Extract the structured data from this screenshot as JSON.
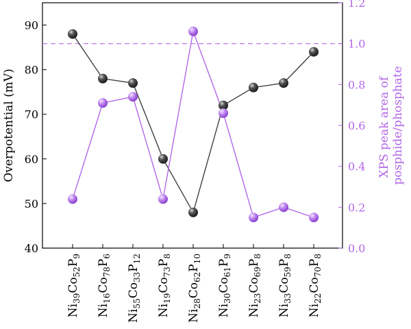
{
  "chart_data": {
    "type": "line",
    "categories": [
      "Ni39Co52P9",
      "Ni16Co78P6",
      "Ni55Co33P12",
      "Ni19Co73P8",
      "Ni28Co62P10",
      "Ni30Co61P9",
      "Ni23Co69P8",
      "Ni33Co59P8",
      "Ni22Co70P8"
    ],
    "category_parts": [
      [
        [
          "Ni",
          ""
        ],
        [
          "39",
          "s"
        ],
        [
          "Co",
          ""
        ],
        [
          "52",
          "s"
        ],
        [
          "P",
          ""
        ],
        [
          "9",
          "s"
        ]
      ],
      [
        [
          "Ni",
          ""
        ],
        [
          "16",
          "s"
        ],
        [
          "Co",
          ""
        ],
        [
          "78",
          "s"
        ],
        [
          "P",
          ""
        ],
        [
          "6",
          "s"
        ]
      ],
      [
        [
          "Ni",
          ""
        ],
        [
          "55",
          "s"
        ],
        [
          "Co",
          ""
        ],
        [
          "33",
          "s"
        ],
        [
          "P",
          ""
        ],
        [
          "12",
          "s"
        ]
      ],
      [
        [
          "Ni",
          ""
        ],
        [
          "19",
          "s"
        ],
        [
          "Co",
          ""
        ],
        [
          "73",
          "s"
        ],
        [
          "P",
          ""
        ],
        [
          "8",
          "s"
        ]
      ],
      [
        [
          "Ni",
          ""
        ],
        [
          "28",
          "s"
        ],
        [
          "Co",
          ""
        ],
        [
          "62",
          "s"
        ],
        [
          "P",
          ""
        ],
        [
          "10",
          "s"
        ]
      ],
      [
        [
          "Ni",
          ""
        ],
        [
          "30",
          "s"
        ],
        [
          "Co",
          ""
        ],
        [
          "61",
          "s"
        ],
        [
          "P",
          ""
        ],
        [
          "9",
          "s"
        ]
      ],
      [
        [
          "Ni",
          ""
        ],
        [
          "23",
          "s"
        ],
        [
          "Co",
          ""
        ],
        [
          "69",
          "s"
        ],
        [
          "P",
          ""
        ],
        [
          "8",
          "s"
        ]
      ],
      [
        [
          "Ni",
          ""
        ],
        [
          "33",
          "s"
        ],
        [
          "Co",
          ""
        ],
        [
          "59",
          "s"
        ],
        [
          "P",
          ""
        ],
        [
          "8",
          "s"
        ]
      ],
      [
        [
          "Ni",
          ""
        ],
        [
          "22",
          "s"
        ],
        [
          "Co",
          ""
        ],
        [
          "70",
          "s"
        ],
        [
          "P",
          ""
        ],
        [
          "8",
          "s"
        ]
      ]
    ],
    "series": [
      {
        "axis": "left",
        "color": "#404040",
        "values": [
          88,
          78,
          77,
          60,
          48,
          72,
          76,
          77,
          84
        ]
      },
      {
        "axis": "right",
        "color": "#b266e8",
        "values": [
          0.24,
          0.71,
          0.74,
          0.24,
          1.06,
          0.66,
          0.15,
          0.2,
          0.15
        ]
      }
    ],
    "ylabel_left": "Overpotential (mV)",
    "ylabel_right_lines": [
      "XPS peak area of",
      "posphide/phosphate"
    ],
    "ylim_left": [
      40,
      95
    ],
    "yticks_left": [
      40,
      50,
      60,
      70,
      80,
      90
    ],
    "ylim_right": [
      0,
      1.2
    ],
    "yticks_right": [
      "0.0",
      "0.2",
      "0.4",
      "0.6",
      "0.8",
      "1.0",
      "1.2"
    ],
    "reference_line": {
      "axis": "right",
      "value": 1.0,
      "style": "dashed",
      "color": "#b266e8"
    },
    "grid": false,
    "legend": "none"
  }
}
